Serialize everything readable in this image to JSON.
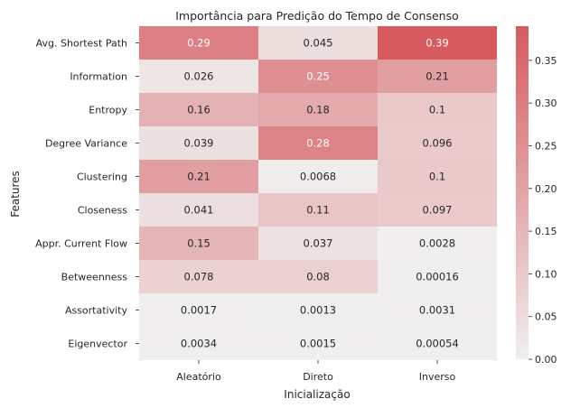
{
  "chart_data": {
    "type": "heatmap",
    "title": "Importância para Predição do Tempo de Consenso",
    "xlabel": "Inicialização",
    "ylabel": "Features",
    "columns": [
      "Aleatório",
      "Direto",
      "Inverso"
    ],
    "rows": [
      "Avg. Shortest Path",
      "Information",
      "Entropy",
      "Degree Variance",
      "Clustering",
      "Closeness",
      "Appr. Current Flow",
      "Betweenness",
      "Assortativity",
      "Eigenvector"
    ],
    "values": [
      [
        0.29,
        0.045,
        0.39
      ],
      [
        0.026,
        0.25,
        0.21
      ],
      [
        0.16,
        0.18,
        0.1
      ],
      [
        0.039,
        0.28,
        0.096
      ],
      [
        0.21,
        0.0068,
        0.1
      ],
      [
        0.041,
        0.11,
        0.097
      ],
      [
        0.15,
        0.037,
        0.0028
      ],
      [
        0.078,
        0.08,
        0.00016
      ],
      [
        0.0017,
        0.0013,
        0.0031
      ],
      [
        0.0034,
        0.0015,
        0.00054
      ]
    ],
    "labels": [
      [
        "0.29",
        "0.045",
        "0.39"
      ],
      [
        "0.026",
        "0.25",
        "0.21"
      ],
      [
        "0.16",
        "0.18",
        "0.1"
      ],
      [
        "0.039",
        "0.28",
        "0.096"
      ],
      [
        "0.21",
        "0.0068",
        "0.1"
      ],
      [
        "0.041",
        "0.11",
        "0.097"
      ],
      [
        "0.15",
        "0.037",
        "0.0028"
      ],
      [
        "0.078",
        "0.08",
        "0.00016"
      ],
      [
        "0.0017",
        "0.0013",
        "0.0031"
      ],
      [
        "0.0034",
        "0.0015",
        "0.00054"
      ]
    ],
    "colorbar": {
      "range": [
        0.0,
        0.39
      ],
      "ticks": [
        "0.00",
        "0.05",
        "0.10",
        "0.15",
        "0.20",
        "0.25",
        "0.30",
        "0.35"
      ],
      "tick_values": [
        0,
        0.05,
        0.1,
        0.15,
        0.2,
        0.25,
        0.3,
        0.35
      ],
      "color_low": "#f0efef",
      "color_high": "#d65a5e"
    }
  }
}
